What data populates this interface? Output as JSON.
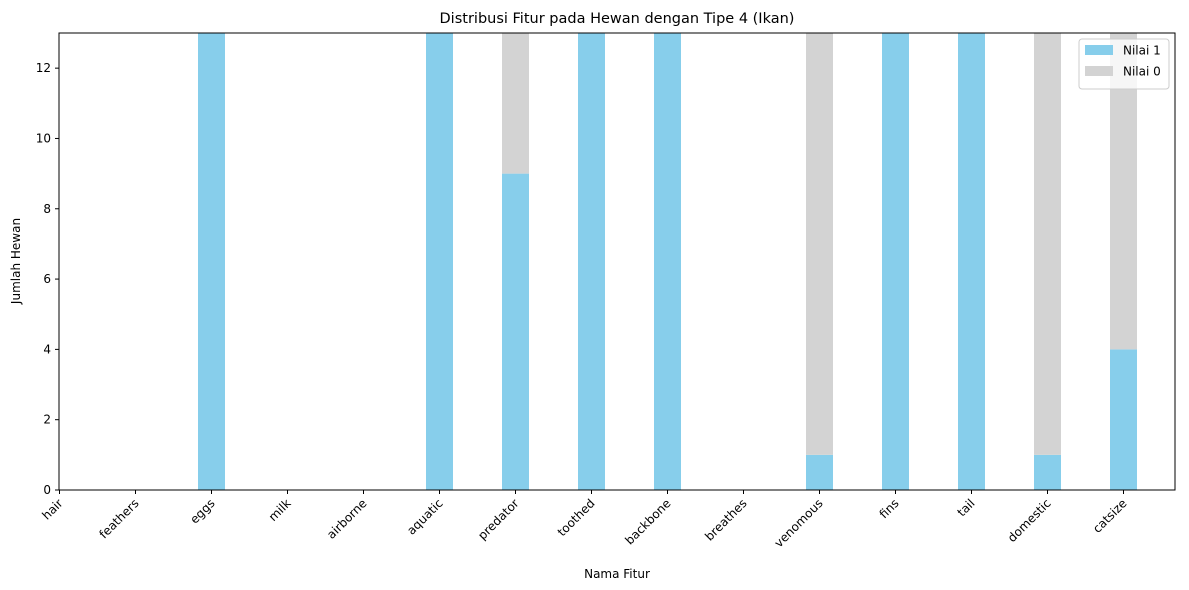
{
  "chart_data": {
    "type": "bar",
    "stacked": true,
    "title": "Distribusi Fitur pada Hewan dengan Tipe 4 (Ikan)",
    "xlabel": "Nama Fitur",
    "ylabel": "Jumlah Hewan",
    "categories": [
      "hair",
      "feathers",
      "eggs",
      "milk",
      "airborne",
      "aquatic",
      "predator",
      "toothed",
      "backbone",
      "breathes",
      "venomous",
      "fins",
      "tail",
      "domestic",
      "catsize"
    ],
    "ylim": [
      0,
      13
    ],
    "yticks": [
      0,
      2,
      4,
      6,
      8,
      10,
      12
    ],
    "grid": false,
    "legend_position": "top-right",
    "series": [
      {
        "name": "Nilai 1",
        "color": "#87ceeb",
        "values": [
          0,
          0,
          13,
          0,
          0,
          13,
          9,
          13,
          13,
          0,
          1,
          13,
          13,
          1,
          4
        ]
      },
      {
        "name": "Nilai 0",
        "color": "#d3d3d3",
        "values": [
          0,
          0,
          0,
          0,
          0,
          0,
          4,
          0,
          0,
          0,
          12,
          0,
          0,
          12,
          9
        ]
      }
    ]
  }
}
